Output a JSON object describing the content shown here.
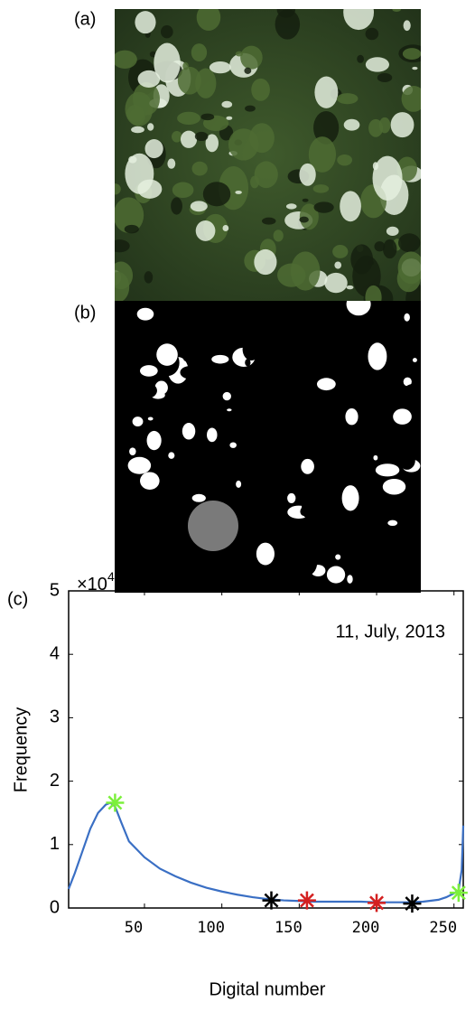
{
  "panel_labels": [
    "(a)",
    "(b)",
    "(c)"
  ],
  "chart_data": {
    "type": "line",
    "annotation": "11, July, 2013",
    "xlabel": "Digital number",
    "ylabel": "Frequency",
    "y_scale_label": {
      "base": "×10",
      "exponent": "4"
    },
    "x": [
      1,
      5,
      10,
      15,
      20,
      25,
      28,
      31,
      35,
      40,
      50,
      60,
      70,
      80,
      90,
      100,
      110,
      120,
      130,
      140,
      150,
      160,
      170,
      180,
      190,
      200,
      210,
      220,
      230,
      240,
      245,
      250,
      253,
      255,
      256
    ],
    "series": [
      {
        "color": "#3a6fc4",
        "values": [
          0.3,
          0.55,
          0.9,
          1.25,
          1.5,
          1.63,
          1.66,
          1.6,
          1.35,
          1.05,
          0.8,
          0.62,
          0.5,
          0.4,
          0.32,
          0.26,
          0.21,
          0.17,
          0.14,
          0.12,
          0.11,
          0.1,
          0.1,
          0.1,
          0.1,
          0.09,
          0.09,
          0.09,
          0.1,
          0.13,
          0.17,
          0.23,
          0.28,
          0.6,
          1.3
        ]
      }
    ],
    "markers": {
      "x": [
        31,
        132,
        155,
        200,
        223,
        253
      ],
      "y": [
        1.66,
        0.12,
        0.12,
        0.08,
        0.07,
        0.24
      ],
      "colors": [
        "#7cf03c",
        "#000000",
        "#d42020",
        "#d42020",
        "#000000",
        "#7cf03c"
      ]
    },
    "xlim": [
      1,
      256
    ],
    "xticks": [
      50,
      100,
      150,
      200,
      250
    ],
    "ylim": [
      0,
      5
    ],
    "yticks": [
      0,
      1,
      2,
      3,
      4,
      5
    ]
  }
}
